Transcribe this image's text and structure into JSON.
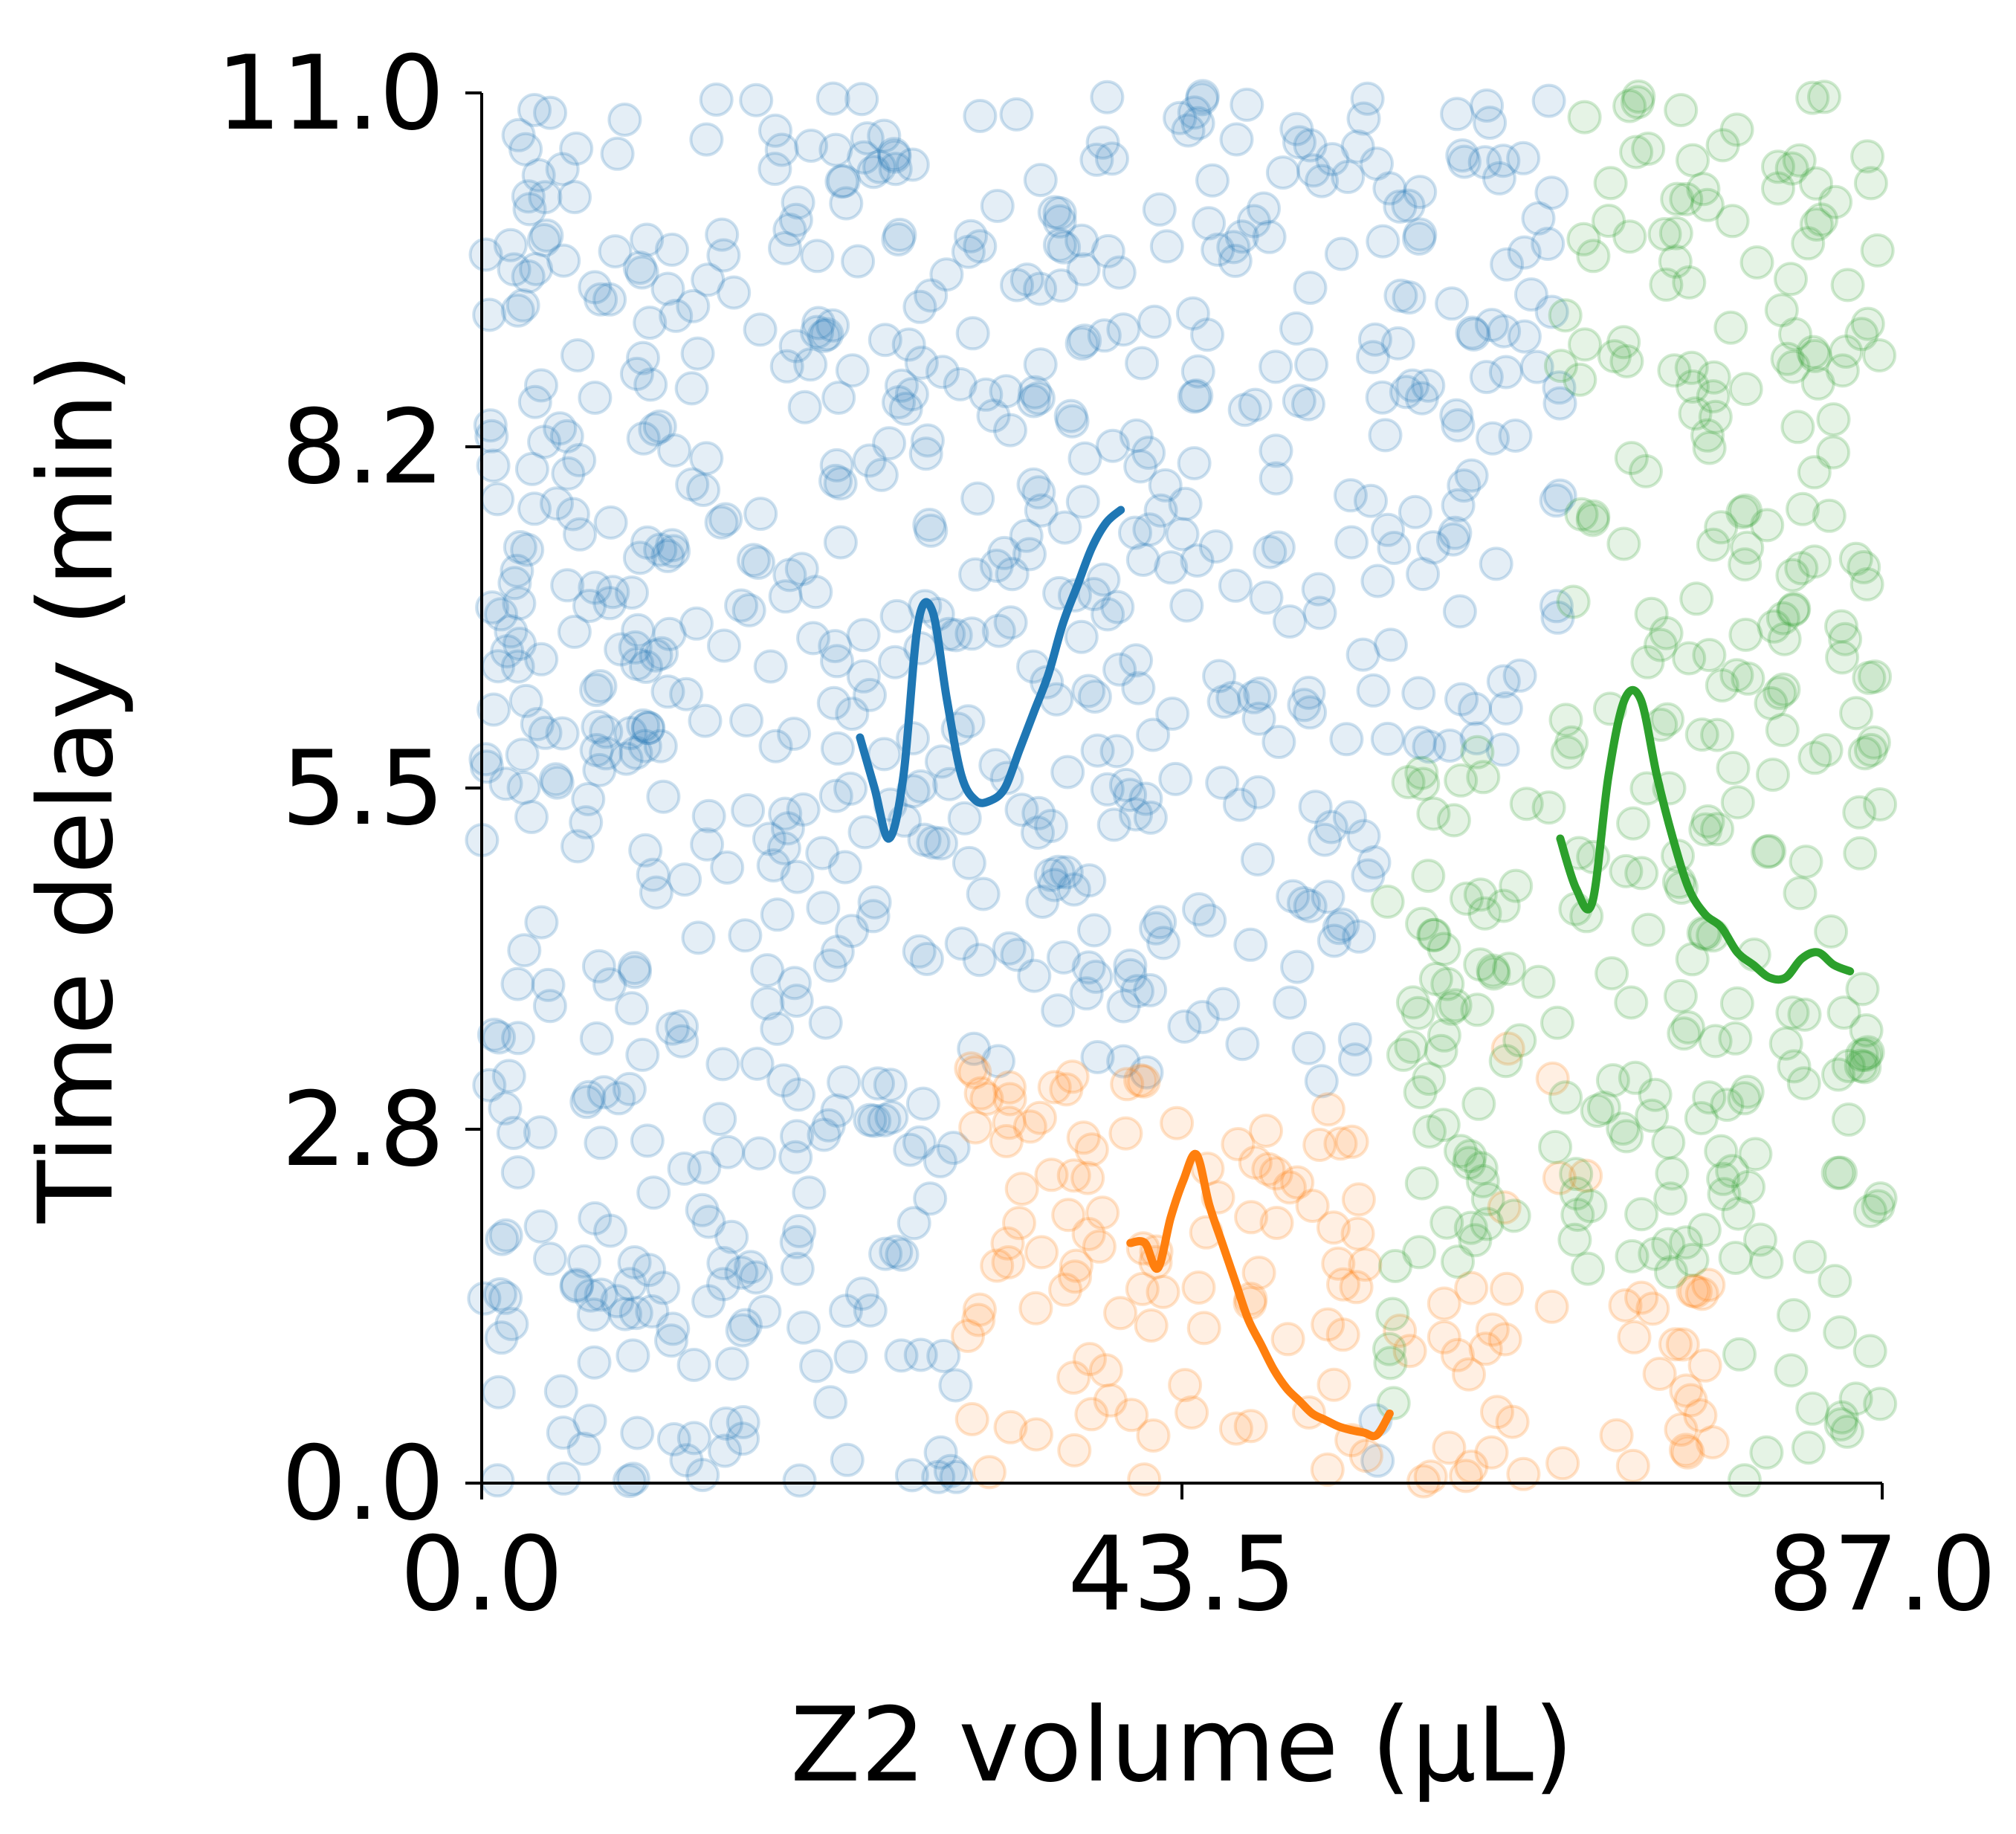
{
  "chart_data": {
    "type": "scatter",
    "xlabel": "Z2 volume (μL)",
    "ylabel": "Time delay (min)",
    "xlim": [
      0.0,
      87.0
    ],
    "ylim": [
      0.0,
      11.0
    ],
    "xticks": [
      "0.0",
      "43.5",
      "87.0"
    ],
    "yticks": [
      "0.0",
      "2.8",
      "5.5",
      "8.2",
      "11.0"
    ],
    "grid": false,
    "legend": "none",
    "point_alpha": 0.12,
    "series": [
      {
        "color": "#1f77b4",
        "regions": [
          {
            "x": [
              0,
              87
            ],
            "y": [
              0,
              11
            ],
            "exclude": "other-regions"
          }
        ],
        "points_count": 760,
        "trace": {
          "x": [
            23.5,
            24.4,
            25.3,
            26.2,
            27.1,
            28.0,
            28.9,
            29.8,
            30.7,
            31.6,
            32.5,
            33.4,
            34.3,
            35.2,
            36.1,
            37.0,
            37.9,
            38.8,
            39.7
          ],
          "y": [
            5.9,
            5.5,
            5.1,
            5.6,
            6.8,
            6.9,
            6.2,
            5.6,
            5.4,
            5.4,
            5.5,
            5.8,
            6.1,
            6.4,
            6.8,
            7.1,
            7.4,
            7.6,
            7.7
          ]
        }
      },
      {
        "color": "#ff7f0e",
        "points_count": 150,
        "trace": {
          "x": [
            40.3,
            41.2,
            42.0,
            42.8,
            43.6,
            44.4,
            45.2,
            46.0,
            46.8,
            47.6,
            48.4,
            49.2,
            50.0,
            50.8,
            51.6,
            52.4,
            53.2,
            54.0,
            54.8,
            55.6,
            56.4
          ],
          "y": [
            1.9,
            1.9,
            1.7,
            2.1,
            2.4,
            2.6,
            2.2,
            1.9,
            1.6,
            1.3,
            1.1,
            0.9,
            0.75,
            0.65,
            0.55,
            0.5,
            0.45,
            0.42,
            0.4,
            0.38,
            0.55
          ]
        }
      },
      {
        "color": "#2ca02c",
        "points_count": 320,
        "trace": {
          "x": [
            67.0,
            68.0,
            69.0,
            70.0,
            71.0,
            72.0,
            73.0,
            74.0,
            75.0,
            76.0,
            77.0,
            78.0,
            79.0,
            80.0,
            81.0,
            82.0,
            83.0,
            84.0,
            85.0
          ],
          "y": [
            5.1,
            4.7,
            4.6,
            5.6,
            6.2,
            6.2,
            5.6,
            5.1,
            4.7,
            4.5,
            4.4,
            4.2,
            4.1,
            4.0,
            4.0,
            4.15,
            4.2,
            4.1,
            4.05
          ]
        }
      }
    ]
  }
}
